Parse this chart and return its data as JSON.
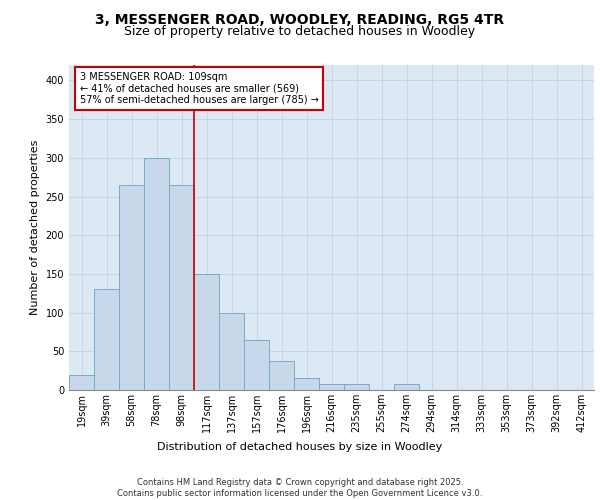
{
  "title_line1": "3, MESSENGER ROAD, WOODLEY, READING, RG5 4TR",
  "title_line2": "Size of property relative to detached houses in Woodley",
  "xlabel": "Distribution of detached houses by size in Woodley",
  "ylabel": "Number of detached properties",
  "bin_labels": [
    "19sqm",
    "39sqm",
    "58sqm",
    "78sqm",
    "98sqm",
    "117sqm",
    "137sqm",
    "157sqm",
    "176sqm",
    "196sqm",
    "216sqm",
    "235sqm",
    "255sqm",
    "274sqm",
    "294sqm",
    "314sqm",
    "333sqm",
    "353sqm",
    "373sqm",
    "392sqm",
    "412sqm"
  ],
  "bar_values": [
    20,
    130,
    265,
    300,
    265,
    150,
    100,
    65,
    38,
    15,
    8,
    8,
    0,
    8,
    0,
    0,
    0,
    0,
    0,
    0,
    0
  ],
  "bar_color": "#c8d8eb",
  "bar_edge_color": "#7aaac8",
  "red_line_x": 4.5,
  "annotation_text": "3 MESSENGER ROAD: 109sqm\n← 41% of detached houses are smaller (569)\n57% of semi-detached houses are larger (785) →",
  "annotation_box_color": "#ffffff",
  "annotation_box_edge": "#cc0000",
  "grid_color": "#c8d4e4",
  "background_color": "#dce8f4",
  "ylim": [
    0,
    420
  ],
  "yticks": [
    0,
    50,
    100,
    150,
    200,
    250,
    300,
    350,
    400
  ],
  "footer_text": "Contains HM Land Registry data © Crown copyright and database right 2025.\nContains public sector information licensed under the Open Government Licence v3.0.",
  "title_fontsize": 10,
  "subtitle_fontsize": 9,
  "axis_label_fontsize": 8,
  "tick_fontsize": 7,
  "annotation_fontsize": 7,
  "footer_fontsize": 6
}
